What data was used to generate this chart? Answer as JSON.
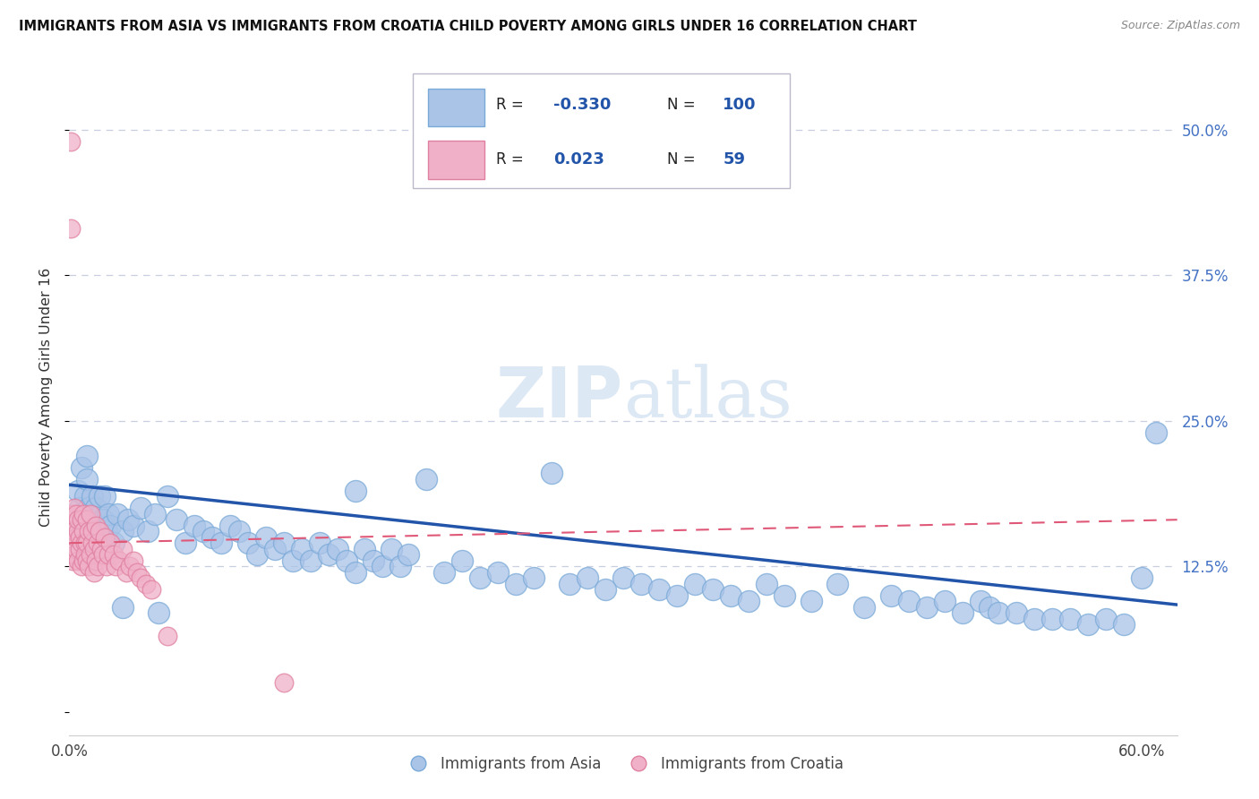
{
  "title": "IMMIGRANTS FROM ASIA VS IMMIGRANTS FROM CROATIA CHILD POVERTY AMONG GIRLS UNDER 16 CORRELATION CHART",
  "source": "Source: ZipAtlas.com",
  "ylabel": "Child Poverty Among Girls Under 16",
  "xlim": [
    0.0,
    0.62
  ],
  "ylim": [
    -0.02,
    0.56
  ],
  "asia_R": "-0.330",
  "asia_N": "100",
  "croatia_R": "0.023",
  "croatia_N": "59",
  "asia_color": "#aac4e8",
  "asia_edge_color": "#7aaad8",
  "asia_line_color": "#2255aa",
  "croatia_color": "#f0b0c8",
  "croatia_edge_color": "#e080a0",
  "croatia_line_color": "#e05878",
  "watermark_color": "#dde8f5",
  "grid_color": "#c8cfe0",
  "title_color": "#111111",
  "right_tick_color": "#4472c4",
  "asia_scatter_x": [
    0.005,
    0.006,
    0.007,
    0.008,
    0.009,
    0.01,
    0.011,
    0.012,
    0.013,
    0.014,
    0.015,
    0.016,
    0.017,
    0.018,
    0.019,
    0.02,
    0.021,
    0.022,
    0.023,
    0.025,
    0.027,
    0.03,
    0.033,
    0.036,
    0.04,
    0.044,
    0.048,
    0.055,
    0.06,
    0.065,
    0.07,
    0.075,
    0.08,
    0.085,
    0.09,
    0.095,
    0.1,
    0.105,
    0.11,
    0.115,
    0.12,
    0.125,
    0.13,
    0.135,
    0.14,
    0.145,
    0.15,
    0.155,
    0.16,
    0.165,
    0.17,
    0.175,
    0.18,
    0.185,
    0.19,
    0.2,
    0.21,
    0.22,
    0.23,
    0.24,
    0.25,
    0.26,
    0.27,
    0.28,
    0.29,
    0.3,
    0.31,
    0.32,
    0.33,
    0.34,
    0.35,
    0.36,
    0.37,
    0.38,
    0.39,
    0.4,
    0.415,
    0.43,
    0.445,
    0.46,
    0.47,
    0.48,
    0.49,
    0.5,
    0.51,
    0.515,
    0.52,
    0.53,
    0.54,
    0.55,
    0.56,
    0.57,
    0.58,
    0.59,
    0.6,
    0.608,
    0.05,
    0.16,
    0.03,
    0.01
  ],
  "asia_scatter_y": [
    0.19,
    0.175,
    0.21,
    0.165,
    0.185,
    0.2,
    0.175,
    0.165,
    0.185,
    0.155,
    0.175,
    0.16,
    0.185,
    0.15,
    0.165,
    0.185,
    0.155,
    0.17,
    0.16,
    0.145,
    0.17,
    0.155,
    0.165,
    0.16,
    0.175,
    0.155,
    0.17,
    0.185,
    0.165,
    0.145,
    0.16,
    0.155,
    0.15,
    0.145,
    0.16,
    0.155,
    0.145,
    0.135,
    0.15,
    0.14,
    0.145,
    0.13,
    0.14,
    0.13,
    0.145,
    0.135,
    0.14,
    0.13,
    0.12,
    0.14,
    0.13,
    0.125,
    0.14,
    0.125,
    0.135,
    0.2,
    0.12,
    0.13,
    0.115,
    0.12,
    0.11,
    0.115,
    0.205,
    0.11,
    0.115,
    0.105,
    0.115,
    0.11,
    0.105,
    0.1,
    0.11,
    0.105,
    0.1,
    0.095,
    0.11,
    0.1,
    0.095,
    0.11,
    0.09,
    0.1,
    0.095,
    0.09,
    0.095,
    0.085,
    0.095,
    0.09,
    0.085,
    0.085,
    0.08,
    0.08,
    0.08,
    0.075,
    0.08,
    0.075,
    0.115,
    0.24,
    0.085,
    0.19,
    0.09,
    0.22
  ],
  "croatia_scatter_x": [
    0.001,
    0.001,
    0.002,
    0.002,
    0.002,
    0.003,
    0.003,
    0.003,
    0.004,
    0.004,
    0.004,
    0.005,
    0.005,
    0.005,
    0.006,
    0.006,
    0.007,
    0.007,
    0.007,
    0.008,
    0.008,
    0.008,
    0.009,
    0.009,
    0.01,
    0.01,
    0.01,
    0.011,
    0.011,
    0.012,
    0.012,
    0.013,
    0.013,
    0.014,
    0.014,
    0.015,
    0.015,
    0.016,
    0.016,
    0.017,
    0.018,
    0.019,
    0.02,
    0.021,
    0.022,
    0.023,
    0.025,
    0.026,
    0.028,
    0.03,
    0.032,
    0.034,
    0.036,
    0.038,
    0.04,
    0.043,
    0.046,
    0.055,
    0.12
  ],
  "croatia_scatter_y": [
    0.49,
    0.415,
    0.155,
    0.17,
    0.13,
    0.155,
    0.135,
    0.175,
    0.14,
    0.17,
    0.15,
    0.155,
    0.13,
    0.165,
    0.15,
    0.14,
    0.165,
    0.145,
    0.125,
    0.155,
    0.13,
    0.17,
    0.145,
    0.135,
    0.165,
    0.145,
    0.13,
    0.155,
    0.125,
    0.17,
    0.135,
    0.145,
    0.155,
    0.14,
    0.12,
    0.16,
    0.13,
    0.145,
    0.125,
    0.155,
    0.14,
    0.135,
    0.15,
    0.125,
    0.135,
    0.145,
    0.135,
    0.125,
    0.13,
    0.14,
    0.12,
    0.125,
    0.13,
    0.12,
    0.115,
    0.11,
    0.105,
    0.065,
    0.025
  ]
}
